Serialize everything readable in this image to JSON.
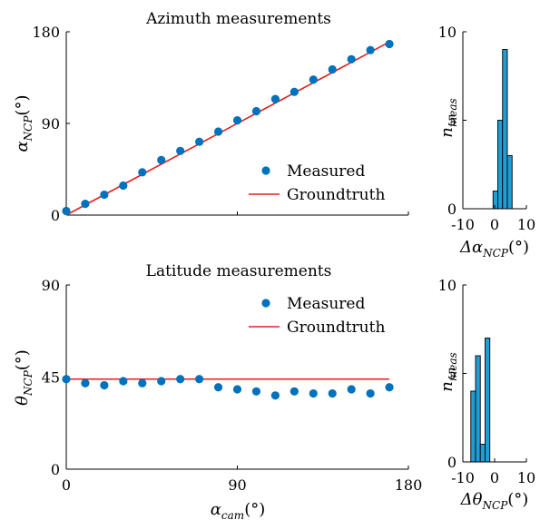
{
  "colors": {
    "measured": "#0072BD",
    "groundtruth": "#E0201B",
    "hist_fill": "#1F9ED6",
    "axis": "#000000"
  },
  "chart_data": [
    {
      "id": "azimuth",
      "type": "scatter",
      "title": "Azimuth measurements",
      "xlabel": "",
      "ylabel": "α_NCP(°)",
      "ylabel_main": "α",
      "ylabel_sub": "NCP",
      "ylabel_unit": "(°)",
      "xlim": [
        0,
        180
      ],
      "ylim": [
        0,
        180
      ],
      "xticks": [
        0,
        90,
        180
      ],
      "yticks": [
        0,
        90,
        180
      ],
      "xtick_labels": [
        "",
        "",
        ""
      ],
      "ytick_labels": [
        "0",
        "90",
        "180"
      ],
      "legend_position": "bottom-right",
      "series": [
        {
          "name": "Measured",
          "style": "dots",
          "x": [
            0,
            10,
            20,
            30,
            40,
            50,
            60,
            70,
            80,
            90,
            100,
            110,
            120,
            130,
            140,
            150,
            160,
            170
          ],
          "y": [
            4,
            11,
            20,
            29,
            42,
            54,
            63,
            72,
            82,
            93,
            102,
            114,
            121,
            133,
            143,
            153,
            162,
            168
          ]
        },
        {
          "name": "Groundtruth",
          "style": "line",
          "x": [
            0,
            170
          ],
          "y": [
            0,
            170
          ]
        }
      ]
    },
    {
      "id": "azimuth-hist",
      "type": "bar",
      "title": "",
      "xlabel": "Δα_NCP(°)",
      "xlabel_main": "Δα",
      "xlabel_sub": "NCP",
      "xlabel_unit": "(°)",
      "ylabel": "n_meas",
      "ylabel_main": "n",
      "ylabel_sub": "meas",
      "xlim": [
        -10,
        10
      ],
      "ylim": [
        0,
        10
      ],
      "xticks": [
        -10,
        0,
        10
      ],
      "yticks": [
        0,
        5,
        10
      ],
      "xtick_labels": [
        "-10",
        "0",
        "10"
      ],
      "ytick_labels": [
        "0",
        "5",
        "10"
      ],
      "bin_width": 1.5,
      "bins": [
        {
          "left": -0.5,
          "count": 1
        },
        {
          "left": 1.0,
          "count": 5
        },
        {
          "left": 2.5,
          "count": 9
        },
        {
          "left": 4.0,
          "count": 3
        }
      ]
    },
    {
      "id": "latitude",
      "type": "scatter",
      "title": "Latitude measurements",
      "xlabel": "α_cam(°)",
      "xlabel_main": "α",
      "xlabel_sub": "cam",
      "xlabel_unit": "(°)",
      "ylabel": "θ_NCP(°)",
      "ylabel_main": "θ",
      "ylabel_sub": "NCP",
      "ylabel_unit": "(°)",
      "xlim": [
        0,
        180
      ],
      "ylim": [
        0,
        90
      ],
      "xticks": [
        0,
        90,
        180
      ],
      "yticks": [
        0,
        45,
        90
      ],
      "xtick_labels": [
        "0",
        "90",
        "180"
      ],
      "ytick_labels": [
        "0",
        "45",
        "90"
      ],
      "legend_position": "top-right",
      "series": [
        {
          "name": "Measured",
          "style": "dots",
          "x": [
            0,
            10,
            20,
            30,
            40,
            50,
            60,
            70,
            80,
            90,
            100,
            110,
            120,
            130,
            140,
            150,
            160,
            170
          ],
          "y": [
            44,
            42,
            41,
            43,
            42,
            43,
            44,
            44,
            40,
            39,
            38,
            36,
            38,
            37,
            37,
            39,
            37,
            40
          ]
        },
        {
          "name": "Groundtruth",
          "style": "line",
          "x": [
            0,
            170
          ],
          "y": [
            44,
            44
          ]
        }
      ]
    },
    {
      "id": "latitude-hist",
      "type": "bar",
      "title": "",
      "xlabel": "Δθ_NCP(°)",
      "xlabel_main": "Δθ",
      "xlabel_sub": "NCP",
      "xlabel_unit": "(°)",
      "ylabel": "n_meas",
      "ylabel_main": "n",
      "ylabel_sub": "meas",
      "xlim": [
        -10,
        10
      ],
      "ylim": [
        0,
        10
      ],
      "xticks": [
        -10,
        0,
        10
      ],
      "yticks": [
        0,
        5,
        10
      ],
      "xtick_labels": [
        "-10",
        "0",
        "10"
      ],
      "ytick_labels": [
        "0",
        "5",
        "10"
      ],
      "bin_width": 1.5,
      "bins": [
        {
          "left": -7.5,
          "count": 4
        },
        {
          "left": -6.0,
          "count": 6
        },
        {
          "left": -4.5,
          "count": 1
        },
        {
          "left": -3.0,
          "count": 7
        }
      ]
    }
  ]
}
